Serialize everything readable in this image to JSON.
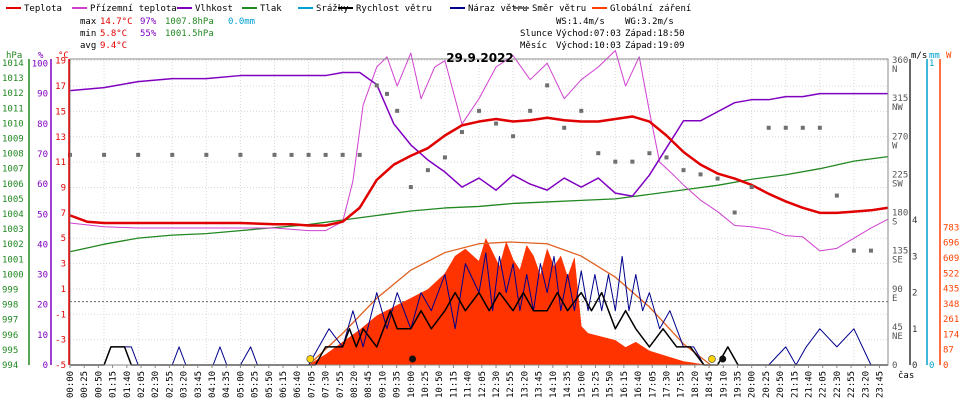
{
  "legend": [
    {
      "label": "Teplota",
      "color": "#e00000"
    },
    {
      "label": "Přízemní teplota",
      "color": "#d040d0"
    },
    {
      "label": "Vlhkost",
      "color": "#8000c0"
    },
    {
      "label": "Tlak",
      "color": "#228822"
    },
    {
      "label": "Srážky",
      "color": "#00a0d0"
    },
    {
      "label": "Rychlost větru",
      "color": "#000000"
    },
    {
      "label": "Náraz větru",
      "color": "#00008b"
    },
    {
      "label": "Směr větru",
      "color": "#707070"
    },
    {
      "label": "Globální záření",
      "color": "#ff4000"
    }
  ],
  "stats": {
    "max_label": "max",
    "max_temp": "14.7°C",
    "max_hum": "97%",
    "max_press": "1007.8hPa",
    "rain": "0.0mm",
    "min_label": "min",
    "min_temp": "5.8°C",
    "min_hum": "55%",
    "min_press": "1001.5hPa",
    "avg_label": "avg",
    "avg_temp": "9.4°C",
    "ws": "WS:1.4m/s",
    "wg": "WG:3.2m/s",
    "sun_label": "Slunce",
    "sun_rise": "Východ:07:03",
    "sun_set": "Západ:18:50",
    "moon_label": "Měsíc",
    "moon_rise": "Východ:10:03",
    "moon_set": "Západ:19:09"
  },
  "chart_data": {
    "type": "line",
    "title": "29.9.2022",
    "xlabel": "čas",
    "x_ticks": [
      "00:00",
      "00:25",
      "00:50",
      "01:15",
      "01:40",
      "02:05",
      "02:30",
      "02:55",
      "03:20",
      "03:45",
      "04:10",
      "04:35",
      "05:00",
      "05:25",
      "05:50",
      "06:15",
      "06:40",
      "07:05",
      "07:30",
      "07:55",
      "08:20",
      "08:45",
      "09:10",
      "09:35",
      "10:00",
      "10:25",
      "10:50",
      "11:15",
      "11:40",
      "12:05",
      "12:30",
      "12:55",
      "13:20",
      "13:45",
      "14:10",
      "14:35",
      "15:00",
      "15:25",
      "15:50",
      "16:15",
      "16:40",
      "17:05",
      "17:30",
      "17:55",
      "18:20",
      "18:45",
      "19:10",
      "19:35",
      "20:00",
      "20:25",
      "20:50",
      "21:15",
      "21:40",
      "22:05",
      "22:30",
      "22:55",
      "23:20",
      "23:45"
    ],
    "axes": {
      "hpa": {
        "unit": "hPa",
        "ticks": [
          "994",
          "995",
          "996",
          "997",
          "998",
          "999",
          "1000",
          "1001",
          "1002",
          "1003",
          "1004",
          "1005",
          "1006",
          "1007",
          "1008",
          "1009",
          "1010",
          "1011",
          "1012",
          "1013",
          "1014"
        ]
      },
      "pct": {
        "unit": "%",
        "ticks": [
          "0",
          "10",
          "20",
          "30",
          "40",
          "50",
          "60",
          "70",
          "80",
          "90",
          "100"
        ]
      },
      "degc": {
        "unit": "°C",
        "ticks": [
          "-5",
          "-3",
          "-1",
          "1",
          "3",
          "5",
          "7",
          "9",
          "11",
          "13",
          "15",
          "17",
          "19"
        ]
      },
      "ms": {
        "unit": "m/s",
        "ticks": [
          "0",
          "1",
          "2",
          "3",
          "4"
        ]
      },
      "mm": {
        "unit": "mm",
        "ticks": [
          "0",
          "1"
        ]
      },
      "dir": {
        "ticks": [
          "0",
          "45",
          "90",
          "135",
          "180",
          "225",
          "270",
          "315",
          "360"
        ],
        "compass": [
          "",
          "NE",
          "E",
          "SE",
          "S",
          "SW",
          "W",
          "NW",
          "N"
        ]
      },
      "w": {
        "unit": "W",
        "ticks": [
          "0",
          "87",
          "174",
          "261",
          "348",
          "435",
          "522",
          "609",
          "696",
          "783"
        ]
      }
    },
    "series": [
      {
        "name": "Teplota",
        "unit": "°C",
        "x_hours": [
          0,
          0.5,
          1,
          2,
          3,
          4,
          5,
          6,
          6.5,
          7,
          7.5,
          8,
          8.5,
          9,
          9.5,
          10,
          10.5,
          11,
          11.5,
          12,
          12.5,
          13,
          13.5,
          14,
          14.5,
          15,
          15.5,
          16,
          16.5,
          17,
          17.5,
          18,
          18.5,
          19,
          19.5,
          20,
          20.5,
          21,
          21.5,
          22,
          22.5,
          23,
          23.5,
          24
        ],
        "values": [
          6.8,
          6.3,
          6.2,
          6.2,
          6.2,
          6.2,
          6.2,
          6.1,
          6.1,
          6.0,
          6.0,
          6.3,
          7.4,
          9.6,
          10.8,
          11.5,
          12.1,
          13.1,
          13.9,
          14.2,
          14.4,
          14.2,
          14.3,
          14.5,
          14.3,
          14.2,
          14.2,
          14.4,
          14.6,
          14.2,
          13.1,
          11.8,
          10.8,
          10.1,
          9.7,
          9.2,
          8.5,
          7.9,
          7.4,
          7.0,
          7.0,
          7.1,
          7.2,
          7.4
        ]
      },
      {
        "name": "Přízemní teplota",
        "unit": "°C",
        "x_hours": [
          0,
          1,
          2,
          3,
          4,
          5,
          6,
          7,
          7.5,
          8,
          8.3,
          8.6,
          9,
          9.3,
          9.6,
          10,
          10.3,
          10.7,
          11,
          11.5,
          12,
          12.5,
          13,
          13.5,
          14,
          14.5,
          15,
          15.5,
          16,
          16.3,
          16.7,
          17,
          17.3,
          17.7,
          18,
          18.5,
          19,
          19.5,
          20,
          20.5,
          21,
          21.5,
          22,
          22.5,
          23,
          23.5,
          24
        ],
        "values": [
          6.2,
          5.9,
          5.8,
          5.8,
          5.8,
          5.8,
          5.8,
          5.6,
          5.6,
          6.3,
          9.5,
          15.5,
          18.5,
          19.3,
          17.0,
          19.6,
          16.0,
          18.5,
          19.0,
          14.0,
          16.0,
          18.5,
          19.4,
          17.5,
          18.8,
          16.0,
          17.5,
          18.5,
          19.8,
          17.0,
          19.3,
          15.0,
          11.0,
          10.0,
          9.2,
          8.0,
          7.1,
          6.0,
          5.9,
          5.7,
          5.2,
          5.1,
          4.0,
          4.2,
          5.0,
          5.8,
          6.5
        ]
      },
      {
        "name": "Vlhkost",
        "unit": "%",
        "x_hours": [
          0,
          1,
          2,
          3,
          4,
          5,
          6,
          7,
          7.5,
          8,
          8.5,
          9,
          9.5,
          10,
          10.5,
          11,
          11.5,
          12,
          12.5,
          13,
          13.5,
          14,
          14.5,
          15,
          15.5,
          16,
          16.5,
          17,
          17.5,
          18,
          18.5,
          19,
          19.5,
          20,
          20.5,
          21,
          21.5,
          22,
          22.5,
          23,
          23.5,
          24
        ],
        "values": [
          91,
          92,
          94,
          95,
          95,
          96,
          96,
          96,
          96,
          97,
          97,
          93,
          80,
          73,
          68,
          64,
          59,
          62,
          58,
          63,
          60,
          58,
          62,
          59,
          62,
          57,
          56,
          63,
          72,
          81,
          81,
          84,
          87,
          88,
          88,
          89,
          89,
          90,
          90,
          90,
          90,
          90
        ],
        "line": "jagged"
      },
      {
        "name": "Tlak",
        "unit": "hPa",
        "x_hours": [
          0,
          1,
          2,
          3,
          4,
          5,
          6,
          7,
          8,
          9,
          10,
          11,
          12,
          13,
          14,
          15,
          16,
          17,
          18,
          19,
          20,
          21,
          22,
          23,
          24
        ],
        "values": [
          1001.5,
          1002.0,
          1002.4,
          1002.6,
          1002.7,
          1002.9,
          1003.1,
          1003.3,
          1003.6,
          1003.9,
          1004.2,
          1004.4,
          1004.5,
          1004.7,
          1004.8,
          1004.9,
          1005.0,
          1005.3,
          1005.6,
          1005.9,
          1006.3,
          1006.6,
          1007.0,
          1007.5,
          1007.8
        ]
      },
      {
        "name": "Směr větru",
        "unit": "°",
        "x_hours": [
          0,
          1,
          2,
          3,
          4,
          5,
          6,
          6.5,
          7,
          7.5,
          8,
          8.5,
          9,
          9.3,
          9.6,
          10,
          10.5,
          11,
          11.5,
          12,
          12.5,
          13,
          13.5,
          14,
          14.5,
          15,
          15.5,
          16,
          16.5,
          17,
          17.5,
          18,
          18.5,
          19,
          19.5,
          20,
          20.5,
          21,
          21.5,
          22,
          22.5,
          23,
          23.5
        ],
        "values": [
          248,
          248,
          248,
          248,
          248,
          248,
          248,
          248,
          248,
          248,
          248,
          248,
          330,
          320,
          300,
          210,
          230,
          245,
          275,
          300,
          285,
          270,
          300,
          330,
          280,
          300,
          250,
          240,
          240,
          250,
          245,
          230,
          225,
          220,
          180,
          210,
          280,
          280,
          280,
          280,
          200,
          135,
          135
        ],
        "style": "dots"
      }
    ],
    "wind_speed": {
      "unit": "m/s",
      "x_hours": [
        0,
        1.0,
        1.2,
        1.4,
        1.6,
        1.8,
        5,
        6,
        6.6,
        6.8,
        7,
        7.2,
        7.5,
        8.0,
        8.2,
        8.4,
        8.6,
        9.0,
        9.2,
        9.4,
        9.6,
        10.0,
        10.3,
        10.6,
        11.0,
        11.3,
        11.6,
        12.0,
        12.3,
        12.6,
        13.0,
        13.3,
        13.6,
        14.0,
        14.3,
        14.6,
        15.0,
        15.3,
        15.6,
        16.0,
        16.3,
        16.6,
        17.0,
        17.4,
        17.8,
        18.2,
        18.6,
        19.0,
        19.3,
        19.6,
        20.0,
        21.0,
        21.6,
        22.0,
        22.4,
        22.8,
        23.2,
        24
      ],
      "values": [
        0,
        0,
        0.5,
        0.5,
        0.5,
        0,
        0,
        0,
        0,
        0,
        0,
        0,
        0.5,
        0.5,
        1,
        0.5,
        1,
        0.5,
        1,
        1.5,
        1,
        1,
        1.5,
        1,
        1.5,
        2,
        1.5,
        2,
        1.5,
        2,
        1.5,
        2,
        1.5,
        1.5,
        2,
        1.5,
        2,
        1.5,
        2,
        1,
        1.5,
        1,
        0.5,
        1,
        0.5,
        0.5,
        0,
        0,
        0.5,
        0,
        0,
        0,
        0,
        0,
        0,
        0,
        0,
        0
      ]
    },
    "wind_gust": {
      "unit": "m/s",
      "x_hours": [
        0,
        1.0,
        1.2,
        1.5,
        1.8,
        2.0,
        3.0,
        3.2,
        3.4,
        4.2,
        4.4,
        4.6,
        5.0,
        5.3,
        5.5,
        6.0,
        7.0,
        7.3,
        7.6,
        8.0,
        8.3,
        8.6,
        9.0,
        9.3,
        9.6,
        10.0,
        10.3,
        10.6,
        11.0,
        11.3,
        11.6,
        12.0,
        12.2,
        12.4,
        12.6,
        12.8,
        13.0,
        13.2,
        13.4,
        13.6,
        13.8,
        14.0,
        14.2,
        14.4,
        14.6,
        14.8,
        15.0,
        15.2,
        15.4,
        15.6,
        15.8,
        16.0,
        16.2,
        16.4,
        16.6,
        16.8,
        17.0,
        17.3,
        17.6,
        18.0,
        18.3,
        18.6,
        19.0,
        19.3,
        19.6,
        20.0,
        20.5,
        21.0,
        21.3,
        21.6,
        22.0,
        22.5,
        23.0,
        23.5,
        24
      ],
      "values": [
        0,
        0,
        0.5,
        0.5,
        0.5,
        0,
        0,
        0.5,
        0,
        0,
        0.5,
        0,
        0,
        0.5,
        0,
        0,
        0,
        0.5,
        1,
        0.5,
        1.5,
        0.5,
        2,
        1,
        2,
        1,
        2,
        1.5,
        2.5,
        1,
        2.8,
        2,
        3.1,
        1.5,
        3,
        2,
        2.8,
        1.5,
        2.5,
        1.5,
        2.8,
        2,
        3,
        1.5,
        2.5,
        1.5,
        2.6,
        1.5,
        2.5,
        1.5,
        2.5,
        1.5,
        3,
        1.5,
        2.5,
        1.5,
        2,
        1,
        1.5,
        0.5,
        0.5,
        0,
        0,
        0.5,
        0,
        0,
        0,
        0.5,
        0,
        0.5,
        1,
        0.5,
        1,
        0,
        0
      ]
    },
    "radiation": {
      "unit": "W",
      "x_hours": [
        7.0,
        7.5,
        8.0,
        8.5,
        9.0,
        9.5,
        10.0,
        10.5,
        11.0,
        11.3,
        11.6,
        12.0,
        12.2,
        12.4,
        12.6,
        12.8,
        13.0,
        13.2,
        13.4,
        13.6,
        13.8,
        14.0,
        14.2,
        14.4,
        14.6,
        14.8,
        15.0,
        15.2,
        15.4,
        15.6,
        15.8,
        16.0,
        16.3,
        16.6,
        17.0,
        17.5,
        18.0,
        18.5,
        18.8
      ],
      "values": [
        0,
        60,
        130,
        200,
        280,
        330,
        380,
        430,
        520,
        620,
        660,
        590,
        720,
        640,
        560,
        700,
        600,
        540,
        680,
        620,
        510,
        660,
        560,
        620,
        500,
        610,
        220,
        180,
        170,
        160,
        150,
        140,
        100,
        130,
        80,
        50,
        20,
        5,
        0
      ]
    },
    "radiation_clear_sky": {
      "unit": "W",
      "x_hours": [
        7.0,
        8.0,
        9.0,
        10.0,
        11.0,
        12.0,
        12.9,
        14.0,
        15.0,
        16.0,
        17.0,
        18.0,
        18.8
      ],
      "values": [
        0,
        180,
        380,
        540,
        640,
        690,
        700,
        690,
        620,
        500,
        330,
        120,
        0
      ]
    },
    "rain": {
      "unit": "mm",
      "values": [
        0
      ]
    },
    "sun_markers": {
      "sunrise": "07:03",
      "sunset": "18:50"
    },
    "moon_markers": {
      "moonrise": "10:03",
      "moonset": "19:09"
    }
  }
}
